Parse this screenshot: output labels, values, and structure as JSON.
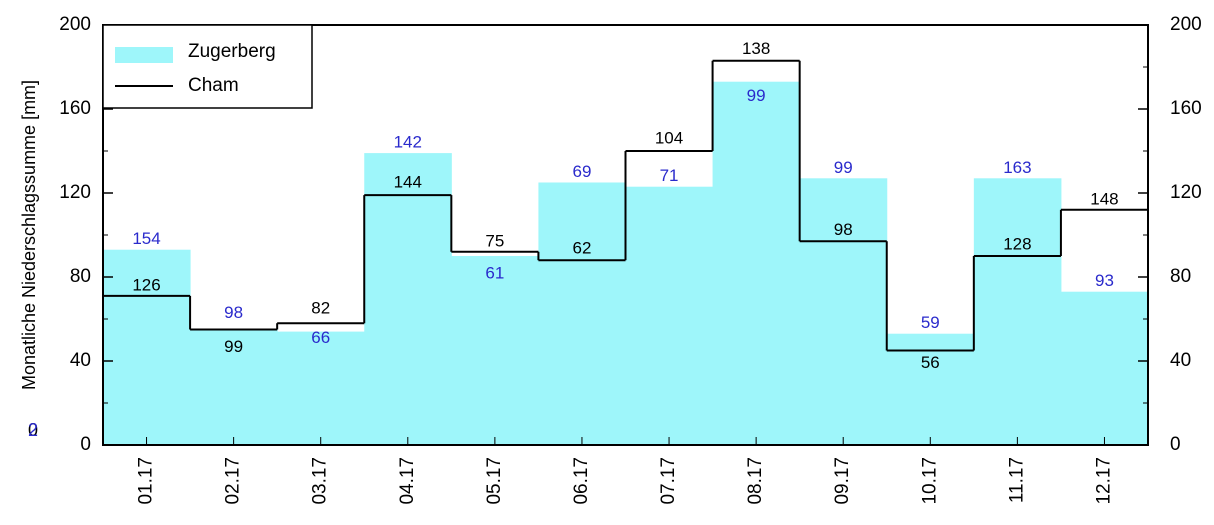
{
  "chart_data": {
    "type": "bar_step",
    "ylabel": "Monatliche Niederschlagssumme [mm]",
    "categories": [
      "01.17",
      "02.17",
      "03.17",
      "04.17",
      "05.17",
      "06.17",
      "07.17",
      "08.17",
      "09.17",
      "10.17",
      "11.17",
      "12.17"
    ],
    "series": [
      {
        "name": "Zugerberg",
        "color": "#9ef6fa",
        "label_color": "#2a2acc",
        "values": [
          93,
          55,
          54,
          139,
          90,
          125,
          123,
          173,
          127,
          53,
          127,
          73
        ],
        "point_labels": [
          154,
          98,
          66,
          142,
          61,
          69,
          71,
          99,
          99,
          59,
          163,
          93
        ]
      },
      {
        "name": "Cham",
        "color": "#000000",
        "label_color": "#000000",
        "values": [
          71,
          55,
          58,
          119,
          92,
          88,
          140,
          183,
          97,
          45,
          90,
          112
        ],
        "point_labels": [
          126,
          99,
          82,
          144,
          75,
          62,
          104,
          138,
          98,
          56,
          128,
          148
        ]
      }
    ],
    "annotations": [
      "0",
      "2"
    ],
    "ylim": [
      0,
      200
    ],
    "yticks": [
      0,
      40,
      80,
      120,
      160,
      200
    ],
    "y2lim": [
      0,
      200
    ],
    "y2ticks": [
      0,
      40,
      80,
      120,
      160,
      200
    ],
    "legend": "upper left"
  }
}
